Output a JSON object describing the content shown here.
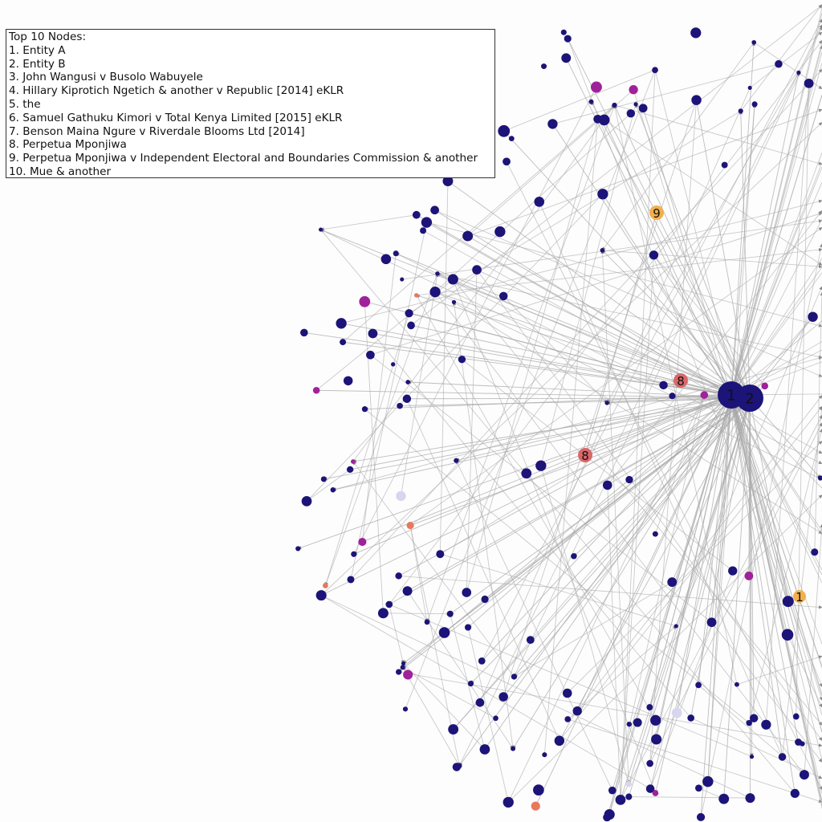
{
  "legend": {
    "title": "Top 10 Nodes:",
    "items": [
      "1. Entity A",
      "2. Entity B",
      "3. John Wangusi v Busolo Wabuyele",
      "4. Hillary Kiprotich Ngetich & another v Republic [2014] eKLR",
      "5. the",
      "6. Samuel Gathuku Kimori v Total Kenya Limited [2015] eKLR",
      "7. Benson Maina Ngure v Riverdale Blooms Ltd [2014]",
      "8. Perpetua Mponjiwa",
      "9. Perpetua Mponjiwa v Independent Electoral and Boundaries Commission & another",
      "10. Mue & another"
    ]
  },
  "graph": {
    "type": "directed network",
    "labeled_nodes": [
      {
        "label": "1",
        "color": "#1c1478"
      },
      {
        "label": "2",
        "color": "#1c1478"
      },
      {
        "label": "8",
        "color": "#d9676a"
      },
      {
        "label": "8",
        "color": "#d9676a"
      },
      {
        "label": "9",
        "color": "#f2b04c"
      },
      {
        "label": "1",
        "color": "#f2b04c"
      }
    ],
    "colors": {
      "node_primary": "#1c1478",
      "node_accent_magenta": "#a0229a",
      "node_accent_orange": "#e8785a",
      "node_faint": "#d8d6ee",
      "node_dark_red": "#8a1a1a",
      "edge": "#a8a8a8",
      "background": "#fdfdfd"
    }
  }
}
